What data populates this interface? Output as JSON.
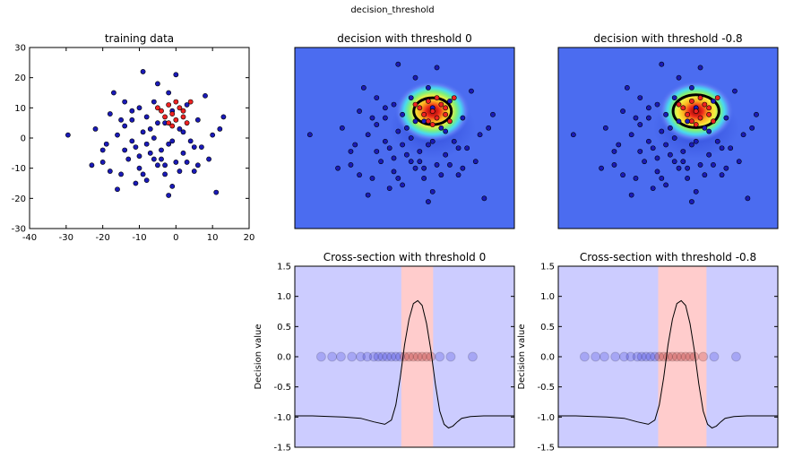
{
  "figure": {
    "suptitle": "decision_threshold"
  },
  "colors": {
    "positive": "#ee2222",
    "negative": "#1a1ab8",
    "heat_background": "#4b6cf0",
    "neg_region": "#ccccff",
    "pos_region": "#ffcccc",
    "curve": "#000000"
  },
  "chart_data": [
    {
      "id": "training",
      "type": "scatter",
      "title": "training data",
      "xlim": [
        -40,
        20
      ],
      "ylim": [
        -30,
        30
      ],
      "xticks": [
        -40,
        -30,
        -20,
        -10,
        0,
        10,
        20
      ],
      "yticks": [
        -30,
        -20,
        -10,
        0,
        10,
        20,
        30
      ],
      "series": [
        {
          "class": "negative",
          "color": "#1a1ab8",
          "points": [
            [
              -29.5,
              1
            ],
            [
              -23,
              -9
            ],
            [
              -22,
              3
            ],
            [
              -20,
              -8
            ],
            [
              -19,
              -2
            ],
            [
              -18,
              8
            ],
            [
              -18,
              -11
            ],
            [
              -17,
              15
            ],
            [
              -16,
              -17
            ],
            [
              -15,
              -12
            ],
            [
              -14,
              12
            ],
            [
              -14,
              4
            ],
            [
              -13,
              -7
            ],
            [
              -12,
              6
            ],
            [
              -11,
              -3
            ],
            [
              -10,
              10
            ],
            [
              -10,
              -10
            ],
            [
              -9,
              2
            ],
            [
              -9,
              22
            ],
            [
              -8,
              -14
            ],
            [
              -8,
              7
            ],
            [
              -7,
              -5
            ],
            [
              -6,
              12
            ],
            [
              -6,
              0
            ],
            [
              -5,
              -9
            ],
            [
              -5,
              18
            ],
            [
              -4,
              -4
            ],
            [
              -3,
              5
            ],
            [
              -3,
              -12
            ],
            [
              -2,
              15
            ],
            [
              -2,
              -2
            ],
            [
              -1,
              9
            ],
            [
              -1,
              -16
            ],
            [
              0,
              21
            ],
            [
              0,
              -8
            ],
            [
              1,
              3
            ],
            [
              2,
              -5
            ],
            [
              3,
              11
            ],
            [
              4,
              -1
            ],
            [
              5,
              -11
            ],
            [
              6,
              6
            ],
            [
              7,
              -3
            ],
            [
              8,
              14
            ],
            [
              9,
              -7
            ],
            [
              10,
              1
            ],
            [
              11,
              -18
            ],
            [
              12,
              3
            ],
            [
              13,
              7
            ],
            [
              -15,
              6
            ],
            [
              -12,
              -1
            ],
            [
              -10,
              -6
            ],
            [
              -7,
              3
            ],
            [
              -4,
              -7
            ],
            [
              -1,
              -1
            ],
            [
              2,
              2
            ],
            [
              5,
              -3
            ],
            [
              -6,
              -7
            ],
            [
              -8,
              -2
            ],
            [
              -3,
              -9
            ],
            [
              1,
              -11
            ],
            [
              -2,
              -19
            ],
            [
              -11,
              -15
            ],
            [
              -16,
              1
            ],
            [
              -20,
              -4
            ],
            [
              -14,
              -4
            ],
            [
              -12,
              9
            ],
            [
              -9,
              -12
            ],
            [
              -5,
              5
            ],
            [
              3,
              -8
            ],
            [
              6,
              -9
            ]
          ]
        },
        {
          "class": "positive",
          "color": "#ee2222",
          "points": [
            [
              -4,
              9
            ],
            [
              -3,
              7
            ],
            [
              -2,
              11
            ],
            [
              -1,
              8
            ],
            [
              0,
              6
            ],
            [
              1,
              10
            ],
            [
              2,
              7
            ],
            [
              3,
              5
            ],
            [
              -2,
              5
            ],
            [
              0,
              12
            ],
            [
              4,
              12
            ],
            [
              -5,
              10
            ],
            [
              -1,
              4
            ],
            [
              2,
              9
            ]
          ]
        }
      ]
    },
    {
      "id": "decision0",
      "type": "heatmap",
      "title": "decision with threshold 0",
      "threshold": 0
    },
    {
      "id": "decision08",
      "type": "heatmap",
      "title": "decision with threshold -0.8",
      "threshold": -0.8
    },
    {
      "id": "cross0",
      "type": "line",
      "title": "Cross-section with threshold 0",
      "ylabel": "Decision value",
      "ylim": [
        -1.5,
        1.5
      ],
      "yticks": [
        -1.5,
        -1.0,
        -0.5,
        0.0,
        0.5,
        1.0,
        1.5
      ],
      "threshold": 0,
      "x": [
        0,
        0.08,
        0.16,
        0.22,
        0.3,
        0.36,
        0.41,
        0.44,
        0.46,
        0.48,
        0.5,
        0.52,
        0.54,
        0.56,
        0.58,
        0.6,
        0.62,
        0.64,
        0.66,
        0.68,
        0.7,
        0.72,
        0.74,
        0.76,
        0.8,
        0.86,
        1.0
      ],
      "y": [
        -0.98,
        -0.98,
        -0.99,
        -1.0,
        -1.02,
        -1.08,
        -1.12,
        -1.05,
        -0.8,
        -0.35,
        0.2,
        0.62,
        0.88,
        0.93,
        0.85,
        0.55,
        0.1,
        -0.45,
        -0.9,
        -1.12,
        -1.18,
        -1.15,
        -1.08,
        -1.02,
        -0.99,
        -0.98,
        -0.98
      ],
      "pos_region": [
        0.485,
        0.63
      ],
      "points_x": [
        0.12,
        0.17,
        0.21,
        0.26,
        0.3,
        0.33,
        0.36,
        0.38,
        0.4,
        0.42,
        0.44,
        0.46,
        0.48,
        0.5,
        0.52,
        0.54,
        0.56,
        0.58,
        0.6,
        0.62,
        0.66,
        0.71,
        0.81
      ]
    },
    {
      "id": "cross08",
      "type": "line",
      "title": "Cross-section with threshold -0.8",
      "ylabel": "Decision value",
      "ylim": [
        -1.5,
        1.5
      ],
      "yticks": [
        -1.5,
        -1.0,
        -0.5,
        0.0,
        0.5,
        1.0,
        1.5
      ],
      "threshold": -0.8,
      "x": [
        0,
        0.08,
        0.16,
        0.22,
        0.3,
        0.36,
        0.41,
        0.44,
        0.46,
        0.48,
        0.5,
        0.52,
        0.54,
        0.56,
        0.58,
        0.6,
        0.62,
        0.64,
        0.66,
        0.68,
        0.7,
        0.72,
        0.74,
        0.76,
        0.8,
        0.86,
        1.0
      ],
      "y": [
        -0.98,
        -0.98,
        -0.99,
        -1.0,
        -1.02,
        -1.08,
        -1.12,
        -1.05,
        -0.8,
        -0.35,
        0.2,
        0.62,
        0.88,
        0.93,
        0.85,
        0.55,
        0.1,
        -0.45,
        -0.9,
        -1.12,
        -1.18,
        -1.15,
        -1.08,
        -1.02,
        -0.99,
        -0.98,
        -0.98
      ],
      "pos_region": [
        0.455,
        0.675
      ],
      "points_x": [
        0.12,
        0.17,
        0.21,
        0.26,
        0.3,
        0.33,
        0.36,
        0.38,
        0.4,
        0.42,
        0.44,
        0.46,
        0.48,
        0.5,
        0.52,
        0.54,
        0.56,
        0.58,
        0.6,
        0.62,
        0.66,
        0.71,
        0.81
      ]
    }
  ]
}
